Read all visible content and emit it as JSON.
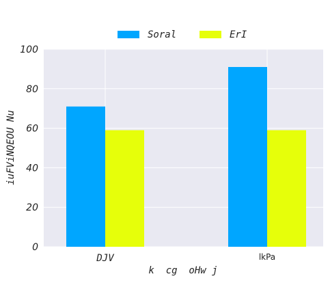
{
  "chart_data": {
    "type": "bar",
    "categories": [
      "DJV",
      "lkPa"
    ],
    "series": [
      {
        "name": "Soral",
        "values": [
          71,
          91
        ],
        "color": "#00a6ff"
      },
      {
        "name": "ErI",
        "values": [
          59,
          59
        ],
        "color": "#e6ff0a"
      }
    ],
    "xlabel": "k  cg  oHw j",
    "ylabel": "iuFViNQEOU Nu",
    "ylim": [
      0,
      100
    ],
    "yticks": [
      0,
      20,
      40,
      60,
      80,
      100
    ],
    "grid": true,
    "legend_position": "top-center",
    "plot_background": "#e9e9f2"
  }
}
